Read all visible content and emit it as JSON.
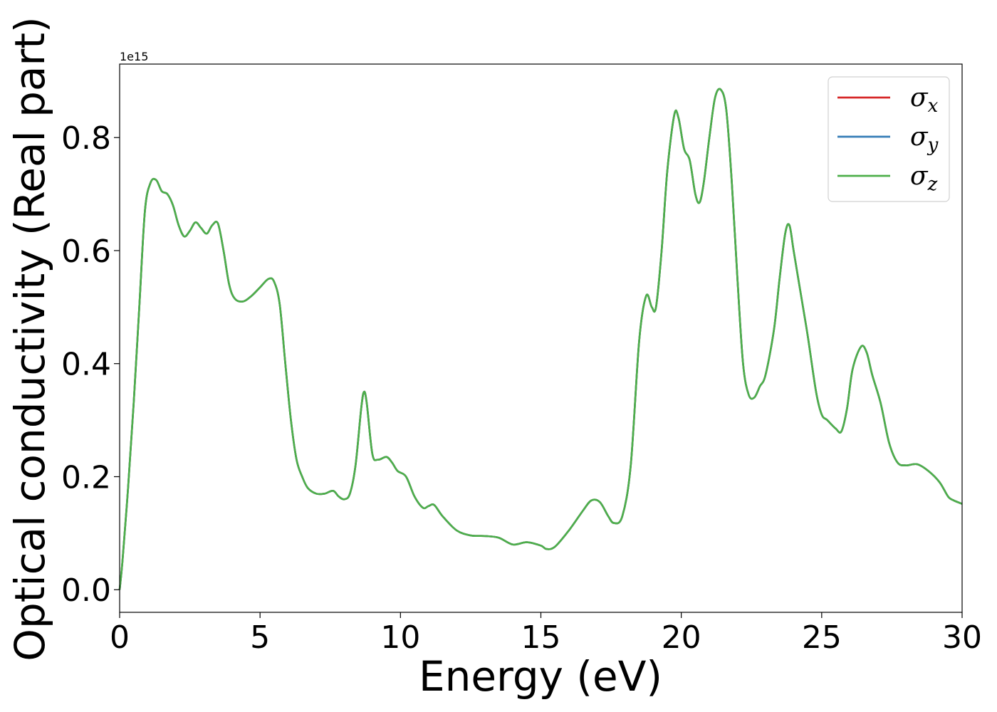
{
  "chart_data": {
    "type": "line",
    "title": "",
    "xlabel": "Energy (eV)",
    "ylabel": "Optical conductivity (Real part)",
    "y_offset_label": "1e15",
    "y_multiplier": 1000000000000000.0,
    "xlim": [
      0,
      30
    ],
    "ylim": [
      -0.04,
      0.93
    ],
    "xticks": [
      0,
      5,
      10,
      15,
      20,
      25,
      30
    ],
    "xtick_labels": [
      "0",
      "5",
      "10",
      "15",
      "20",
      "25",
      "30"
    ],
    "yticks": [
      0.0,
      0.2,
      0.4,
      0.6,
      0.8
    ],
    "ytick_labels": [
      "0.0",
      "0.2",
      "0.4",
      "0.6",
      "0.8"
    ],
    "grid": false,
    "legend_position": "top-right",
    "x": [
      0,
      0.1,
      0.3,
      0.5,
      0.7,
      0.9,
      1.1,
      1.3,
      1.5,
      1.7,
      1.9,
      2.1,
      2.3,
      2.5,
      2.7,
      2.9,
      3.1,
      3.3,
      3.5,
      3.7,
      3.9,
      4.1,
      4.4,
      4.7,
      5.0,
      5.3,
      5.5,
      5.7,
      5.9,
      6.1,
      6.3,
      6.5,
      6.7,
      7.0,
      7.3,
      7.6,
      7.8,
      8.0,
      8.2,
      8.4,
      8.6,
      8.7,
      8.8,
      9.0,
      9.2,
      9.5,
      9.7,
      9.9,
      10.2,
      10.5,
      10.8,
      11.0,
      11.2,
      11.5,
      12.0,
      12.5,
      13.0,
      13.5,
      14.0,
      14.5,
      15.0,
      15.2,
      15.5,
      16.0,
      16.5,
      16.8,
      17.1,
      17.4,
      17.6,
      17.9,
      18.2,
      18.5,
      18.75,
      18.95,
      19.1,
      19.3,
      19.5,
      19.75,
      19.9,
      20.1,
      20.3,
      20.5,
      20.65,
      20.8,
      21.0,
      21.2,
      21.4,
      21.6,
      21.8,
      22.0,
      22.2,
      22.4,
      22.6,
      22.8,
      23.0,
      23.3,
      23.5,
      23.7,
      23.85,
      24.0,
      24.2,
      24.5,
      24.8,
      25.0,
      25.2,
      25.5,
      25.7,
      25.9,
      26.1,
      26.4,
      26.6,
      26.8,
      27.1,
      27.4,
      27.7,
      28.0,
      28.4,
      28.8,
      29.2,
      29.5,
      29.7,
      30.0
    ],
    "series": [
      {
        "name": "x",
        "color": "#d62728",
        "values": [
          0.0,
          0.05,
          0.18,
          0.33,
          0.5,
          0.67,
          0.72,
          0.725,
          0.705,
          0.7,
          0.68,
          0.645,
          0.625,
          0.635,
          0.65,
          0.64,
          0.63,
          0.645,
          0.648,
          0.6,
          0.54,
          0.515,
          0.51,
          0.52,
          0.535,
          0.55,
          0.545,
          0.505,
          0.4,
          0.3,
          0.23,
          0.2,
          0.18,
          0.17,
          0.17,
          0.175,
          0.165,
          0.16,
          0.17,
          0.22,
          0.32,
          0.35,
          0.33,
          0.24,
          0.23,
          0.235,
          0.225,
          0.21,
          0.2,
          0.165,
          0.145,
          0.148,
          0.15,
          0.13,
          0.105,
          0.096,
          0.095,
          0.092,
          0.08,
          0.084,
          0.078,
          0.072,
          0.076,
          0.105,
          0.14,
          0.158,
          0.155,
          0.13,
          0.118,
          0.13,
          0.22,
          0.44,
          0.52,
          0.5,
          0.5,
          0.6,
          0.74,
          0.84,
          0.835,
          0.78,
          0.76,
          0.7,
          0.685,
          0.72,
          0.8,
          0.87,
          0.885,
          0.85,
          0.72,
          0.55,
          0.4,
          0.345,
          0.34,
          0.36,
          0.38,
          0.46,
          0.55,
          0.63,
          0.645,
          0.6,
          0.54,
          0.45,
          0.35,
          0.31,
          0.3,
          0.285,
          0.28,
          0.32,
          0.39,
          0.43,
          0.42,
          0.38,
          0.33,
          0.26,
          0.225,
          0.22,
          0.222,
          0.21,
          0.19,
          0.165,
          0.158,
          0.152
        ]
      },
      {
        "name": "y",
        "color": "#377eb8",
        "values": [
          0.0,
          0.05,
          0.18,
          0.33,
          0.5,
          0.67,
          0.72,
          0.725,
          0.705,
          0.7,
          0.68,
          0.645,
          0.625,
          0.635,
          0.65,
          0.64,
          0.63,
          0.645,
          0.648,
          0.6,
          0.54,
          0.515,
          0.51,
          0.52,
          0.535,
          0.55,
          0.545,
          0.505,
          0.4,
          0.3,
          0.23,
          0.2,
          0.18,
          0.17,
          0.17,
          0.175,
          0.165,
          0.16,
          0.17,
          0.22,
          0.32,
          0.35,
          0.33,
          0.24,
          0.23,
          0.235,
          0.225,
          0.21,
          0.2,
          0.165,
          0.145,
          0.148,
          0.15,
          0.13,
          0.105,
          0.096,
          0.095,
          0.092,
          0.08,
          0.084,
          0.078,
          0.072,
          0.076,
          0.105,
          0.14,
          0.158,
          0.155,
          0.13,
          0.118,
          0.13,
          0.22,
          0.44,
          0.52,
          0.5,
          0.5,
          0.6,
          0.74,
          0.84,
          0.835,
          0.78,
          0.76,
          0.7,
          0.685,
          0.72,
          0.8,
          0.87,
          0.885,
          0.85,
          0.72,
          0.55,
          0.4,
          0.345,
          0.34,
          0.36,
          0.38,
          0.46,
          0.55,
          0.63,
          0.645,
          0.6,
          0.54,
          0.45,
          0.35,
          0.31,
          0.3,
          0.285,
          0.28,
          0.32,
          0.39,
          0.43,
          0.42,
          0.38,
          0.33,
          0.26,
          0.225,
          0.22,
          0.222,
          0.21,
          0.19,
          0.165,
          0.158,
          0.152
        ]
      },
      {
        "name": "z",
        "color": "#4daf4a",
        "values": [
          0.0,
          0.05,
          0.18,
          0.33,
          0.5,
          0.67,
          0.72,
          0.725,
          0.705,
          0.7,
          0.68,
          0.645,
          0.625,
          0.635,
          0.65,
          0.64,
          0.63,
          0.645,
          0.648,
          0.6,
          0.54,
          0.515,
          0.51,
          0.52,
          0.535,
          0.55,
          0.545,
          0.505,
          0.4,
          0.3,
          0.23,
          0.2,
          0.18,
          0.17,
          0.17,
          0.175,
          0.165,
          0.16,
          0.17,
          0.22,
          0.32,
          0.35,
          0.33,
          0.24,
          0.23,
          0.235,
          0.225,
          0.21,
          0.2,
          0.165,
          0.145,
          0.148,
          0.15,
          0.13,
          0.105,
          0.096,
          0.095,
          0.092,
          0.08,
          0.084,
          0.078,
          0.072,
          0.076,
          0.105,
          0.14,
          0.158,
          0.155,
          0.13,
          0.118,
          0.13,
          0.22,
          0.44,
          0.52,
          0.5,
          0.5,
          0.6,
          0.74,
          0.84,
          0.835,
          0.78,
          0.76,
          0.7,
          0.685,
          0.72,
          0.8,
          0.87,
          0.885,
          0.85,
          0.72,
          0.55,
          0.4,
          0.345,
          0.34,
          0.36,
          0.38,
          0.46,
          0.55,
          0.63,
          0.645,
          0.6,
          0.54,
          0.45,
          0.35,
          0.31,
          0.3,
          0.285,
          0.28,
          0.32,
          0.39,
          0.43,
          0.42,
          0.38,
          0.33,
          0.26,
          0.225,
          0.22,
          0.222,
          0.21,
          0.19,
          0.165,
          0.158,
          0.152
        ]
      }
    ],
    "legend": [
      {
        "symbol": "σ",
        "sub": "x",
        "color": "#d62728"
      },
      {
        "symbol": "σ",
        "sub": "y",
        "color": "#377eb8"
      },
      {
        "symbol": "σ",
        "sub": "z",
        "color": "#4daf4a"
      }
    ]
  }
}
